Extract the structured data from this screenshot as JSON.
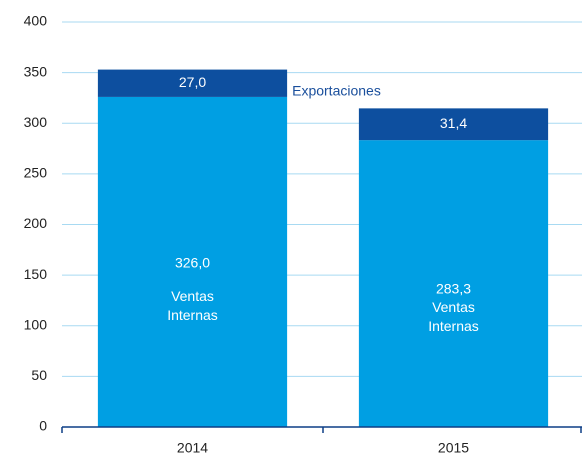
{
  "chart_data": {
    "type": "stacked_bar",
    "categories": [
      "2014",
      "2015"
    ],
    "series": [
      {
        "name": "Ventas Internas",
        "color": "#009fe3",
        "values": [
          326.0,
          283.3
        ],
        "value_labels": [
          "326,0",
          "283,3"
        ]
      },
      {
        "name": "Exportaciones",
        "color": "#0d4f9f",
        "values": [
          27.0,
          31.4
        ],
        "value_labels": [
          "27,0",
          "31,4"
        ]
      }
    ],
    "ylim": [
      0,
      400
    ],
    "yticks": [
      0,
      50,
      100,
      150,
      200,
      250,
      300,
      350,
      400
    ],
    "grid": true
  }
}
